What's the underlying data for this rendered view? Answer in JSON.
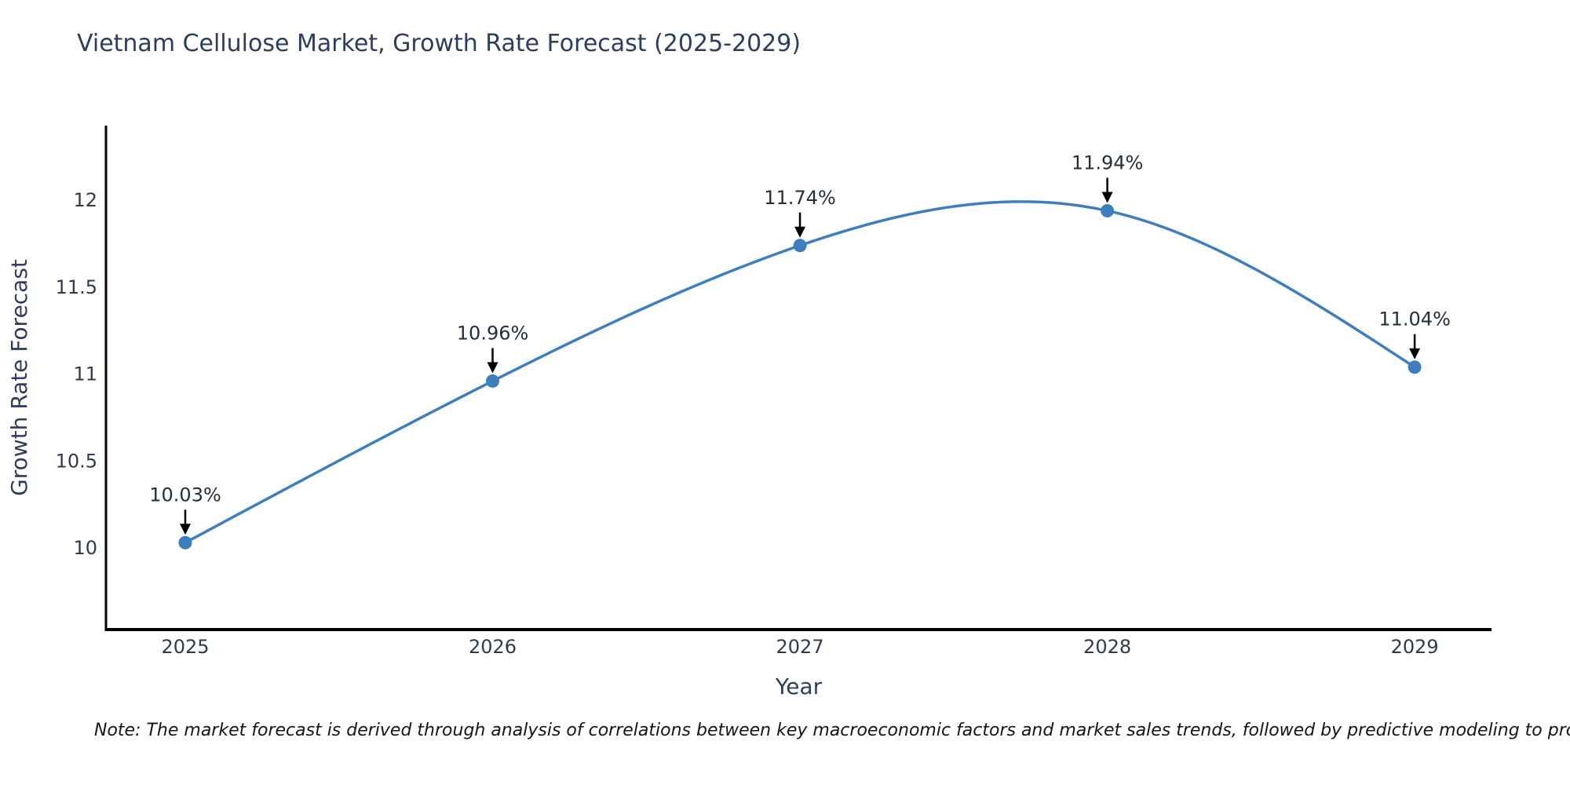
{
  "page": {
    "background": "#ffffff"
  },
  "chart_data": {
    "type": "line",
    "title": "Vietnam Cellulose Market, Growth Rate Forecast (2025-2029)",
    "xlabel": "Year",
    "ylabel": "Growth Rate Forecast",
    "x": [
      2025,
      2026,
      2027,
      2028,
      2029
    ],
    "series": [
      {
        "name": "Growth Rate Forecast",
        "values": [
          10.03,
          10.96,
          11.74,
          11.94,
          11.04
        ]
      }
    ],
    "point_labels": [
      "10.03%",
      "10.96%",
      "11.74%",
      "11.94%",
      "11.04%"
    ],
    "xtick_values": [
      2025,
      2026,
      2027,
      2028,
      2029
    ],
    "xtick_labels": [
      "2025",
      "2026",
      "2027",
      "2028",
      "2029"
    ],
    "ytick_values": [
      10,
      10.5,
      11,
      11.5,
      12
    ],
    "ytick_labels": [
      "10",
      "10.5",
      "11",
      "11.5",
      "12"
    ],
    "xlim": [
      2024.742,
      2029.25
    ],
    "ylim": [
      9.53,
      12.43
    ],
    "line_shape": "natural-spline",
    "grid": false,
    "legend": "none",
    "annotation_style": "value-label-with-down-arrow",
    "colors": {
      "line": "#3e7ebd",
      "marker": "#3e7ebd",
      "axis": "#000000",
      "title_text": "#2c3d5d",
      "tick_text": "#2f3b4c",
      "axis_label_text": "#2c3d5d",
      "annotation_text": "#242d3a",
      "arrow": "#000000",
      "note_text": "#151515"
    }
  },
  "note": "Note: The market forecast is derived through analysis of correlations between key macroeconomic factors and market sales trends, followed by predictive modeling to project future sales"
}
